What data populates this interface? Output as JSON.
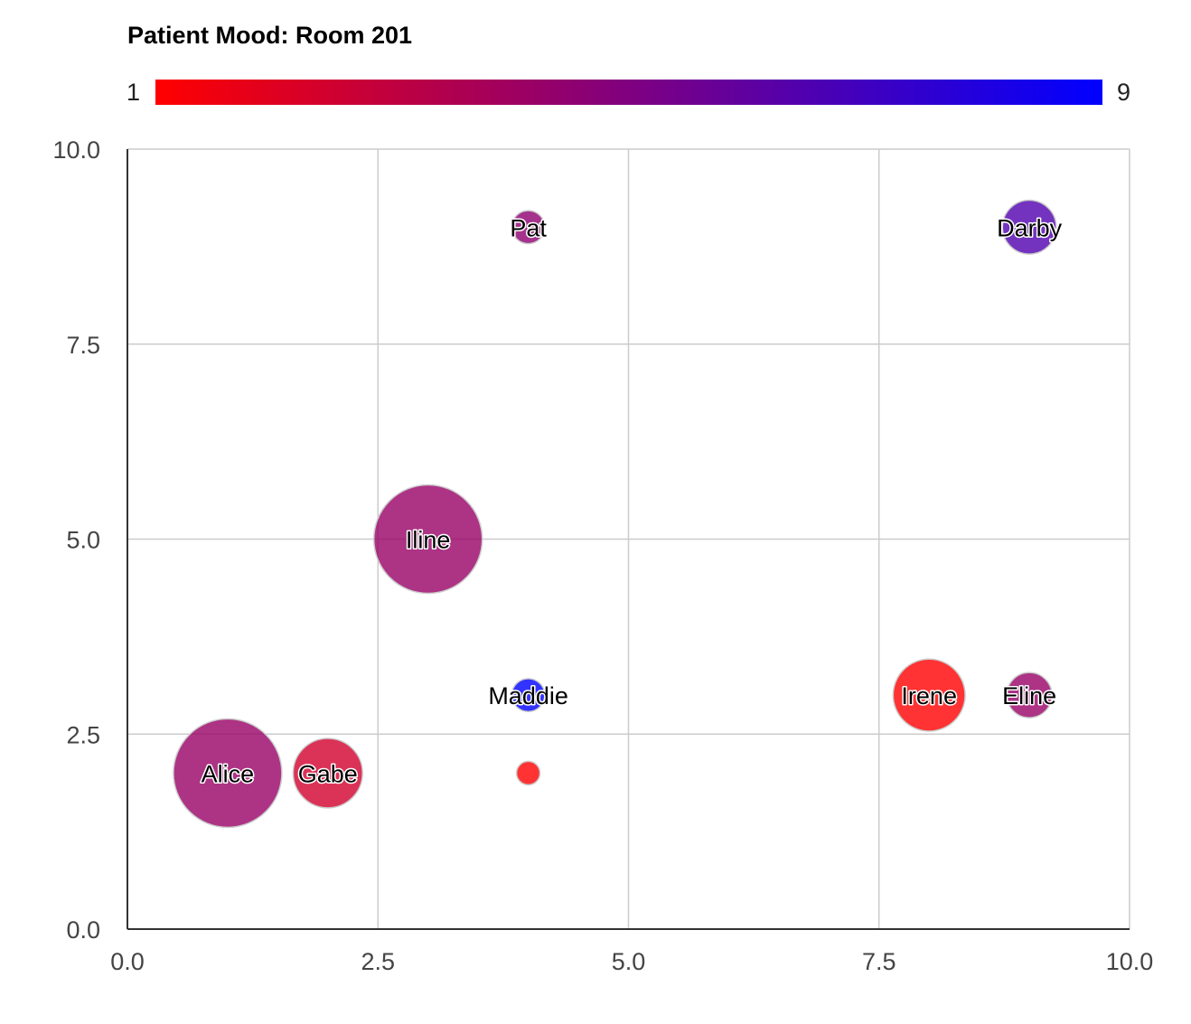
{
  "chart_data": {
    "type": "bubble",
    "title": "Patient Mood: Room 201",
    "xlabel": "",
    "ylabel": "",
    "xlim": [
      0,
      10
    ],
    "ylim": [
      0,
      10
    ],
    "x_ticks": [
      "0.0",
      "2.5",
      "5.0",
      "7.5",
      "10.0"
    ],
    "y_ticks": [
      "0.0",
      "2.5",
      "5.0",
      "7.5",
      "10.0"
    ],
    "grid": true,
    "color_axis": {
      "min_label": "1",
      "max_label": "9",
      "min_value": 1,
      "max_value": 9,
      "min_color": "#ff0000",
      "max_color": "#0000ff"
    },
    "points": [
      {
        "label": "Alice",
        "x": 1,
        "y": 2,
        "color_value": 4.2,
        "size": 10
      },
      {
        "label": "Gabe",
        "x": 2,
        "y": 2,
        "color_value": 2.4,
        "size": 5.5
      },
      {
        "label": "Iline",
        "x": 3,
        "y": 5,
        "color_value": 4.2,
        "size": 10
      },
      {
        "label": "Pat",
        "x": 4,
        "y": 9,
        "color_value": 4.5,
        "size": 1.3
      },
      {
        "label": "Maddie",
        "x": 4,
        "y": 3,
        "color_value": 9,
        "size": 1.3
      },
      {
        "label": "",
        "x": 4,
        "y": 2,
        "color_value": 1,
        "size": 0.2
      },
      {
        "label": "Darby",
        "x": 9,
        "y": 9,
        "color_value": 6.5,
        "size": 3.7
      },
      {
        "label": "Irene",
        "x": 8,
        "y": 3,
        "color_value": 1,
        "size": 5.8
      },
      {
        "label": "Eline",
        "x": 9,
        "y": 3,
        "color_value": 4.2,
        "size": 2.7
      }
    ]
  }
}
